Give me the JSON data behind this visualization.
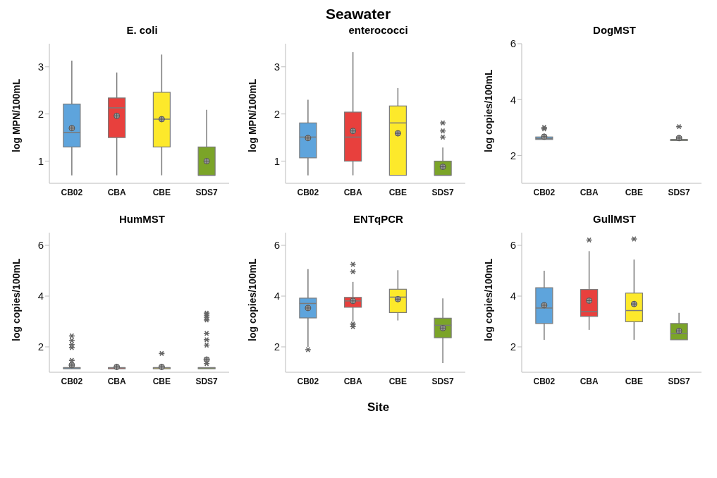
{
  "chart_data": [
    {
      "type": "box",
      "title": "E. coli",
      "ylabel": "log MPN/100mL",
      "annotations": [
        "Seawater"
      ],
      "categories": [
        "CB02",
        "CBA",
        "CBE",
        "SDS7"
      ],
      "colors": [
        "#5ea4dc",
        "#e8403d",
        "#fde92b",
        "#7ba428"
      ],
      "ylim": [
        0.53,
        3.49
      ],
      "yticks": [
        1,
        2,
        3
      ],
      "boxes": [
        {
          "low": 0.7,
          "q1": 1.3,
          "median": 1.61,
          "q3": 2.21,
          "high": 3.13,
          "mean": 1.7
        },
        {
          "low": 0.7,
          "q1": 1.5,
          "median": 2.13,
          "q3": 2.34,
          "high": 2.88,
          "mean": 1.96
        },
        {
          "low": 0.7,
          "q1": 1.3,
          "median": 1.89,
          "q3": 2.46,
          "high": 3.26,
          "mean": 1.89
        },
        {
          "low": 0.7,
          "q1": 0.7,
          "median": 0.7,
          "q3": 1.3,
          "high": 2.09,
          "mean": 1.0
        }
      ]
    },
    {
      "type": "box",
      "title": "enterococci",
      "ylabel": "log MPN/100mL",
      "categories": [
        "CB02",
        "CBA",
        "CBE",
        "SDS7"
      ],
      "colors": [
        "#5ea4dc",
        "#e8403d",
        "#fde92b",
        "#7ba428"
      ],
      "ylim": [
        0.53,
        3.49
      ],
      "yticks": [
        1,
        2,
        3
      ],
      "boxes": [
        {
          "low": 0.7,
          "q1": 1.07,
          "median": 1.51,
          "q3": 1.81,
          "high": 2.3,
          "mean": 1.49
        },
        {
          "low": 0.7,
          "q1": 1.0,
          "median": 1.51,
          "q3": 2.04,
          "high": 3.31,
          "mean": 1.64
        },
        {
          "low": 0.7,
          "q1": 0.7,
          "median": 1.81,
          "q3": 2.17,
          "high": 2.55,
          "mean": 1.59
        },
        {
          "low": 0.7,
          "q1": 0.7,
          "median": 0.7,
          "q3": 1.0,
          "high": 1.29,
          "mean": 0.88,
          "outliers": [
            1.51,
            1.64,
            1.81
          ]
        }
      ]
    },
    {
      "type": "box",
      "title": "DogMST",
      "ylabel": "log copies/100mL",
      "categories": [
        "CB02",
        "CBA",
        "CBE",
        "SDS7"
      ],
      "colors": [
        "#5ea4dc",
        null,
        null,
        "#7ba428"
      ],
      "ylim": [
        1,
        6
      ],
      "yticks": [
        2,
        4,
        6
      ],
      "boxes": [
        {
          "low": 2.57,
          "q1": 2.57,
          "median": 2.6,
          "q3": 2.66,
          "high": 2.66,
          "mean": 2.67,
          "outliers": [
            2.95,
            3.0
          ]
        },
        null,
        null,
        {
          "low": 2.57,
          "q1": 2.57,
          "median": 2.57,
          "q3": 2.57,
          "high": 2.57,
          "mean": 2.62,
          "outliers": [
            3.03
          ]
        }
      ]
    },
    {
      "type": "box",
      "title": "HumMST",
      "ylabel": "log copies/100mL",
      "categories": [
        "CB02",
        "CBA",
        "CBE",
        "SDS7"
      ],
      "colors": [
        "#5ea4dc",
        "#e8403d",
        "#fde92b",
        "#7ba428"
      ],
      "ylim": [
        1,
        6.5
      ],
      "yticks": [
        2,
        4,
        6
      ],
      "boxes": [
        {
          "low": 1.18,
          "q1": 1.18,
          "median": 1.18,
          "q3": 1.18,
          "high": 1.18,
          "mean": 1.28,
          "outliers": [
            1.47,
            1.97,
            2.09,
            2.25,
            2.43
          ]
        },
        {
          "low": 1.18,
          "q1": 1.18,
          "median": 1.18,
          "q3": 1.18,
          "high": 1.18,
          "mean": 1.21
        },
        {
          "low": 1.18,
          "q1": 1.18,
          "median": 1.18,
          "q3": 1.18,
          "high": 1.18,
          "mean": 1.21,
          "outliers": [
            1.74
          ]
        },
        {
          "low": 1.18,
          "q1": 1.18,
          "median": 1.18,
          "q3": 1.18,
          "high": 1.18,
          "mean": 1.5,
          "outliers": [
            1.34,
            2.07,
            2.28,
            2.53,
            3.06,
            3.17,
            3.25,
            3.33
          ]
        }
      ]
    },
    {
      "type": "box",
      "title": "ENTqPCR",
      "ylabel": "log copies/100mL",
      "xlabel": "Site",
      "categories": [
        "CB02",
        "CBA",
        "CBE",
        "SDS7"
      ],
      "colors": [
        "#5ea4dc",
        "#e8403d",
        "#fde92b",
        "#7ba428"
      ],
      "ylim": [
        1,
        6.5
      ],
      "yticks": [
        2,
        4,
        6
      ],
      "boxes": [
        {
          "low": 2.0,
          "q1": 3.14,
          "median": 3.71,
          "q3": 3.92,
          "high": 5.06,
          "mean": 3.53,
          "outliers": [
            1.89
          ]
        },
        {
          "low": 3.0,
          "q1": 3.56,
          "median": 3.81,
          "q3": 3.95,
          "high": 4.56,
          "mean": 3.81,
          "outliers": [
            2.8,
            2.9,
            4.96,
            5.25
          ]
        },
        {
          "low": 3.04,
          "q1": 3.35,
          "median": 3.96,
          "q3": 4.27,
          "high": 5.02,
          "mean": 3.88
        },
        {
          "low": 1.36,
          "q1": 2.36,
          "median": 2.85,
          "q3": 3.13,
          "high": 3.91,
          "mean": 2.74
        }
      ]
    },
    {
      "type": "box",
      "title": "GullMST",
      "ylabel": "log copies/100mL",
      "categories": [
        "CB02",
        "CBA",
        "CBE",
        "SDS7"
      ],
      "colors": [
        "#5ea4dc",
        "#e8403d",
        "#fde92b",
        "#7ba428"
      ],
      "ylim": [
        1,
        6.5
      ],
      "yticks": [
        2,
        4,
        6
      ],
      "boxes": [
        {
          "low": 2.28,
          "q1": 2.92,
          "median": 3.53,
          "q3": 4.33,
          "high": 5.0,
          "mean": 3.64
        },
        {
          "low": 2.67,
          "q1": 3.2,
          "median": 3.39,
          "q3": 4.26,
          "high": 5.77,
          "mean": 3.82,
          "outliers": [
            6.21
          ]
        },
        {
          "low": 2.28,
          "q1": 2.99,
          "median": 3.43,
          "q3": 4.12,
          "high": 5.44,
          "mean": 3.69,
          "outliers": [
            6.25
          ]
        },
        {
          "low": 2.28,
          "q1": 2.28,
          "median": 2.52,
          "q3": 2.92,
          "high": 3.34,
          "mean": 2.63
        }
      ]
    }
  ]
}
